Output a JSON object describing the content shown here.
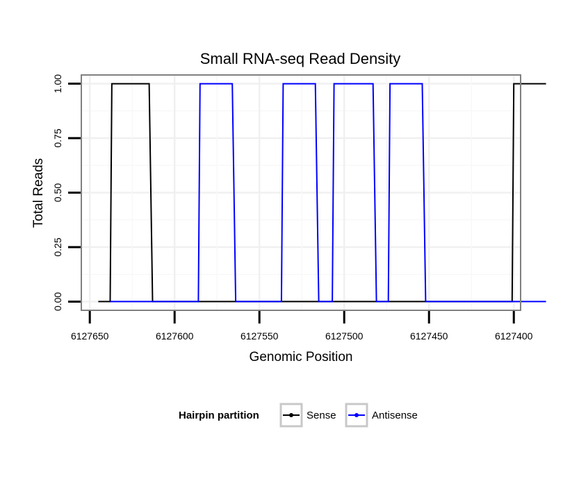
{
  "chart_data": {
    "type": "line",
    "title": "Small RNA-seq Read Density",
    "xlabel": "Genomic Position",
    "ylabel": "Total Reads",
    "xlim": [
      6127655,
      6127396
    ],
    "ylim": [
      -0.04,
      1.04
    ],
    "x_reversed": true,
    "x_ticks": [
      6127650,
      6127600,
      6127550,
      6127500,
      6127450,
      6127400
    ],
    "x_tick_labels": [
      "6127650",
      "6127600",
      "6127550",
      "6127500",
      "6127450",
      "6127400"
    ],
    "y_ticks": [
      0,
      0.25,
      0.5,
      0.75,
      1.0
    ],
    "y_tick_labels": [
      "0.00",
      "0.25",
      "0.50",
      "0.75",
      "1.00"
    ],
    "grid": true,
    "legend": {
      "title": "Hairpin partition",
      "placement": "bottom"
    },
    "series": [
      {
        "name": "Sense",
        "color": "#000000",
        "x": [
          6127645,
          6127638,
          6127637,
          6127615,
          6127613,
          6127545,
          6127401,
          6127400,
          6127381
        ],
        "y": [
          0,
          0,
          1,
          1,
          0,
          0,
          0,
          1,
          1
        ]
      },
      {
        "name": "Antisense",
        "color": "#0000ff",
        "x": [
          6127638,
          6127586,
          6127585,
          6127566,
          6127564,
          6127537,
          6127536,
          6127517,
          6127515,
          6127507,
          6127506,
          6127483,
          6127481,
          6127474,
          6127473,
          6127454,
          6127452,
          6127381
        ],
        "y": [
          0,
          0,
          1,
          1,
          0,
          0,
          1,
          1,
          0,
          0,
          1,
          1,
          0,
          0,
          1,
          1,
          0,
          0
        ]
      }
    ]
  }
}
